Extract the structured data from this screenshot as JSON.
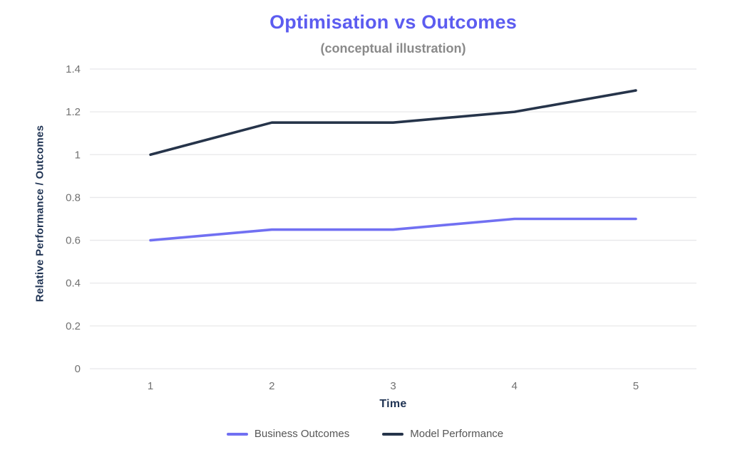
{
  "chart_data": {
    "type": "line",
    "title": "Optimisation vs Outcomes",
    "subtitle": "(conceptual illustration)",
    "xlabel": "Time",
    "ylabel": "Relative Performance / Outcomes",
    "x": [
      1,
      2,
      3,
      4,
      5
    ],
    "xtick_labels": [
      "1",
      "2",
      "3",
      "4",
      "5"
    ],
    "series": [
      {
        "name": "Business Outcomes",
        "color": "#7170f2",
        "values": [
          0.6,
          0.65,
          0.65,
          0.7,
          0.7
        ]
      },
      {
        "name": "Model Performance",
        "color": "#26344a",
        "values": [
          1.0,
          1.15,
          1.15,
          1.2,
          1.3
        ]
      }
    ],
    "ylim": [
      0,
      1.4
    ],
    "yticks": [
      0,
      0.2,
      0.4,
      0.6,
      0.8,
      1,
      1.2,
      1.4
    ],
    "ytick_labels": [
      "0",
      "0.2",
      "0.4",
      "0.6",
      "0.8",
      "1",
      "1.2",
      "1.4"
    ],
    "grid": "horizontal",
    "legend_position": "bottom"
  },
  "colors": {
    "title": "#5c5cf0",
    "subtitle": "#8a8a8a",
    "axis_label": "#203454",
    "tick_label": "#717171",
    "gridline": "#e8e8ea",
    "legend_text": "#565656",
    "background": "#ffffff"
  }
}
